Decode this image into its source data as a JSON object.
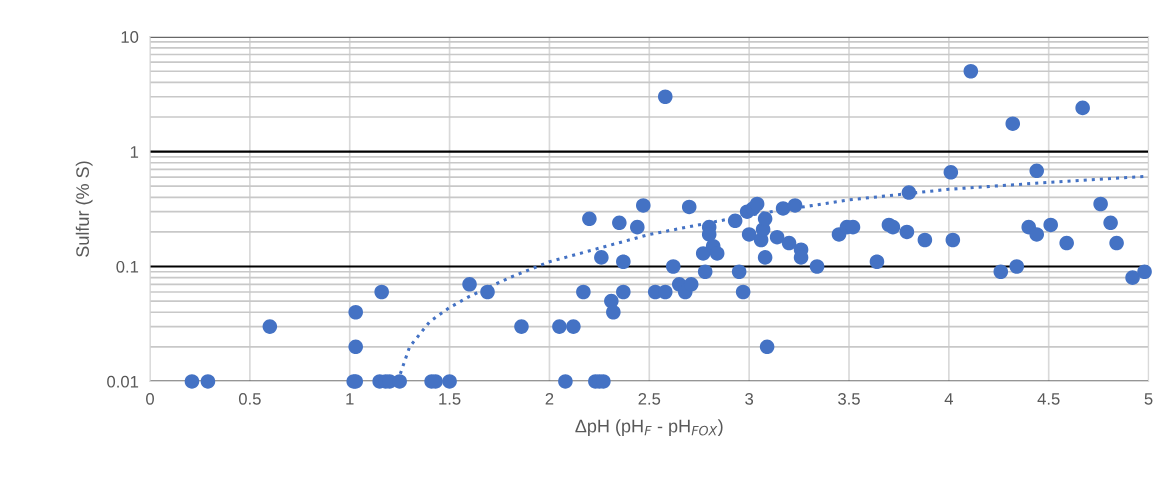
{
  "chart_data": {
    "type": "scatter",
    "xlabel": "ΔpH (pH$_{F}$ - pH$_{FOX}$)",
    "ylabel": "Sulfur (% S)",
    "log": "y",
    "grid": true,
    "xlim": [
      0,
      5
    ],
    "xticks": [
      0,
      0.5,
      1,
      1.5,
      2,
      2.5,
      3,
      3.5,
      4,
      4.5,
      5
    ],
    "ylim": [
      0.01,
      10
    ],
    "yticks": [
      0.01,
      0.1,
      1,
      10
    ],
    "series": [
      {
        "color": "#4472c4",
        "marker": "circle",
        "x": [
          0.21,
          0.29,
          0.6,
          1.02,
          1.03,
          1.03,
          1.03,
          1.16,
          1.15,
          1.18,
          1.2,
          1.25,
          1.41,
          1.43,
          1.5,
          1.6,
          1.69,
          1.86,
          2.05,
          2.08,
          2.12,
          2.17,
          2.2,
          2.23,
          2.25,
          2.26,
          2.27,
          2.31,
          2.32,
          2.35,
          2.37,
          2.37,
          2.44,
          2.47,
          2.53,
          2.58,
          2.58,
          2.62,
          2.65,
          2.68,
          2.7,
          2.71,
          2.77,
          2.78,
          2.8,
          2.8,
          2.82,
          2.84,
          2.93,
          2.95,
          2.97,
          2.99,
          3.0,
          3.02,
          3.04,
          3.06,
          3.07,
          3.08,
          3.08,
          3.09,
          3.14,
          3.17,
          3.2,
          3.23,
          3.26,
          3.26,
          3.34,
          3.45,
          3.49,
          3.52,
          3.64,
          3.7,
          3.72,
          3.79,
          3.8,
          3.88,
          4.01,
          4.02,
          4.11,
          4.26,
          4.32,
          4.34,
          4.4,
          4.44,
          4.44,
          4.51,
          4.59,
          4.67,
          4.76,
          4.81,
          4.84,
          4.92,
          4.98
        ],
        "values": [
          0.01,
          0.01,
          0.03,
          0.01,
          0.04,
          0.02,
          0.01,
          0.06,
          0.01,
          0.01,
          0.01,
          0.01,
          0.01,
          0.01,
          0.01,
          0.07,
          0.06,
          0.03,
          0.03,
          0.01,
          0.03,
          0.06,
          0.26,
          0.01,
          0.01,
          0.12,
          0.01,
          0.05,
          0.04,
          0.24,
          0.11,
          0.06,
          0.22,
          0.34,
          0.06,
          3.0,
          0.06,
          0.1,
          0.07,
          0.06,
          0.33,
          0.07,
          0.13,
          0.09,
          0.22,
          0.19,
          0.15,
          0.13,
          0.25,
          0.09,
          0.06,
          0.3,
          0.19,
          0.32,
          0.35,
          0.17,
          0.21,
          0.26,
          0.12,
          0.02,
          0.18,
          0.32,
          0.16,
          0.34,
          0.14,
          0.12,
          0.1,
          0.19,
          0.22,
          0.22,
          0.11,
          0.23,
          0.22,
          0.2,
          0.44,
          0.17,
          0.66,
          0.17,
          5.0,
          0.09,
          1.75,
          0.1,
          0.22,
          0.68,
          0.19,
          0.23,
          0.16,
          2.4,
          0.35,
          0.24,
          0.16,
          0.08,
          0.09
        ]
      },
      {
        "type": "line",
        "color": "#4472c4",
        "line_style": "dotted",
        "marker": "none",
        "x": [
          1.24,
          1.3,
          1.4,
          1.5,
          1.6,
          1.8,
          2,
          2.5,
          3,
          3.5,
          4,
          4.5,
          5
        ],
        "values": [
          0.01,
          0.02,
          0.033,
          0.044,
          0.055,
          0.08,
          0.11,
          0.19,
          0.28,
          0.38,
          0.47,
          0.54,
          0.61
        ]
      }
    ]
  }
}
